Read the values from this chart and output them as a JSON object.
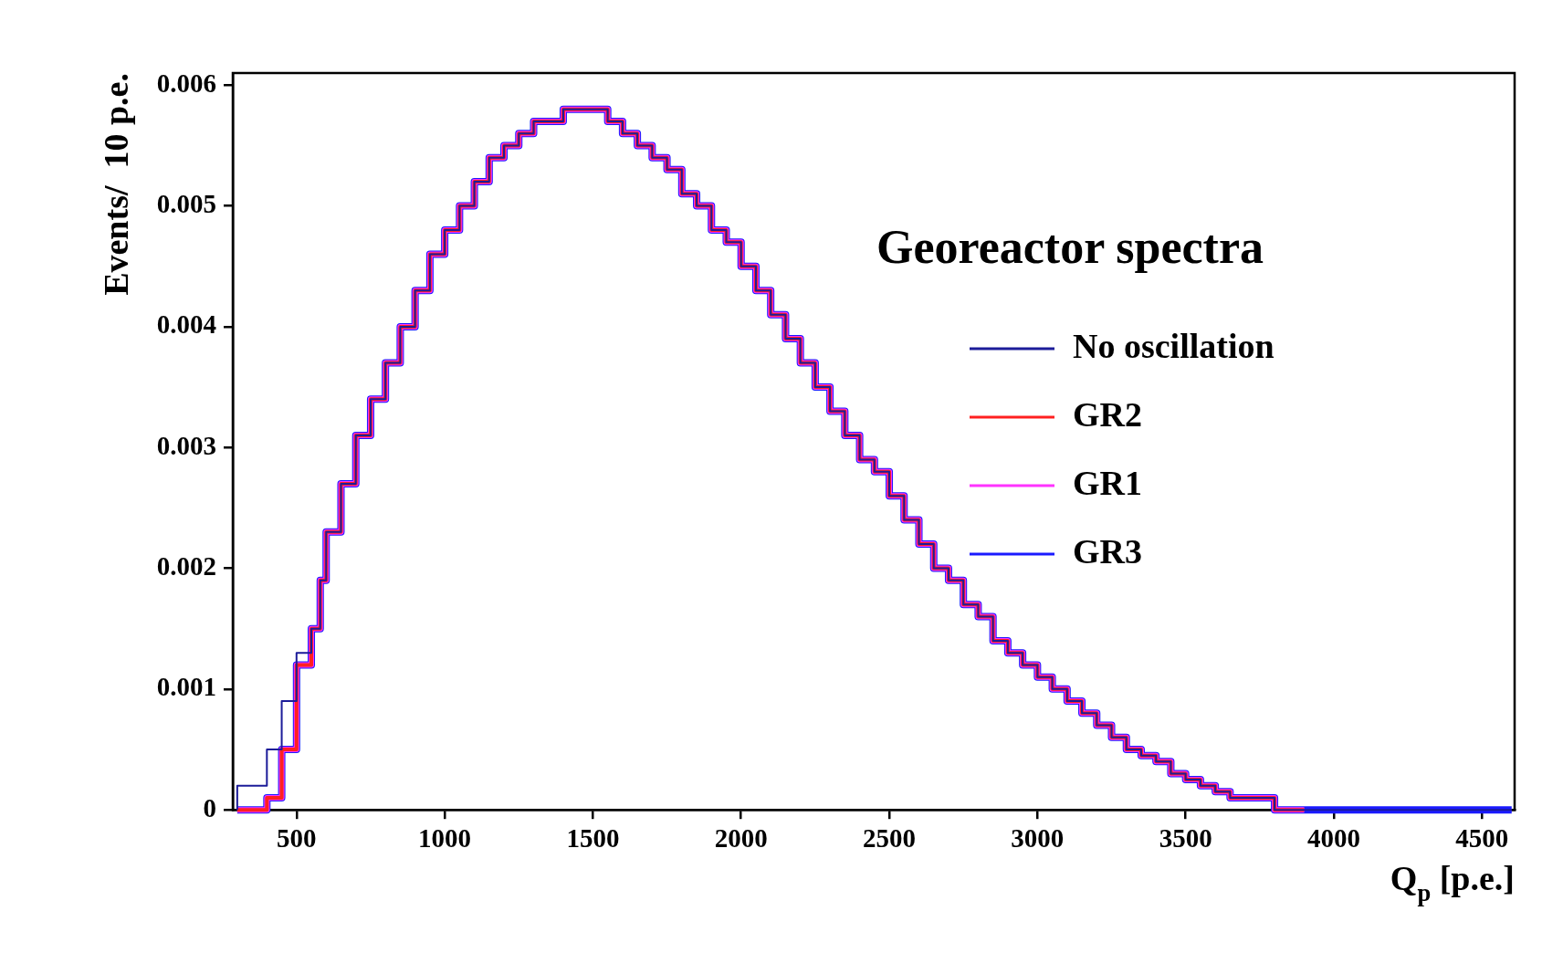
{
  "chart_data": {
    "type": "step",
    "xlabel": "Q$_{p}$ [p.e.]",
    "ylabel": "Events/  10 p.e.",
    "legend_title": "Georeactor spectra",
    "legend": "right",
    "x": [
      300,
      400,
      450,
      500,
      550,
      580,
      600,
      650,
      700,
      750,
      800,
      850,
      900,
      950,
      1000,
      1050,
      1100,
      1150,
      1200,
      1250,
      1300,
      1350,
      1400,
      1450,
      1500,
      1550,
      1600,
      1650,
      1700,
      1750,
      1800,
      1850,
      1900,
      1950,
      2000,
      2050,
      2100,
      2150,
      2200,
      2250,
      2300,
      2350,
      2400,
      2450,
      2500,
      2550,
      2600,
      2650,
      2700,
      2750,
      2800,
      2850,
      2900,
      2950,
      3000,
      3050,
      3100,
      3150,
      3200,
      3250,
      3300,
      3350,
      3400,
      3450,
      3500,
      3550,
      3600,
      3650,
      3700,
      3750,
      3800,
      3900,
      4000,
      4200,
      4600
    ],
    "series": [
      {
        "name": "No oscillation",
        "color": "#1c1c99",
        "values": [
          0,
          0.0002,
          0.0005,
          0.0009,
          0.0013,
          0.0015,
          0.0019,
          0.0023,
          0.0027,
          0.0031,
          0.0034,
          0.0037,
          0.004,
          0.0043,
          0.0046,
          0.0048,
          0.005,
          0.0052,
          0.0054,
          0.0055,
          0.0056,
          0.0057,
          0.0057,
          0.0058,
          0.0058,
          0.0058,
          0.0057,
          0.0056,
          0.0055,
          0.0054,
          0.0053,
          0.0051,
          0.005,
          0.0048,
          0.0047,
          0.0045,
          0.0043,
          0.0041,
          0.0039,
          0.0037,
          0.0035,
          0.0033,
          0.0031,
          0.0029,
          0.0028,
          0.0026,
          0.0024,
          0.0022,
          0.002,
          0.0019,
          0.0017,
          0.0016,
          0.0014,
          0.0013,
          0.0012,
          0.0011,
          0.001,
          0.0009,
          0.0008,
          0.0007,
          0.0006,
          0.0005,
          0.00045,
          0.0004,
          0.0003,
          0.00025,
          0.0002,
          0.00015,
          0.0001,
          0.0001,
          0.0001,
          0,
          0,
          0,
          0
        ]
      },
      {
        "name": "GR2",
        "color": "#ff2020",
        "values": [
          0,
          0,
          0.0001,
          0.0005,
          0.0012,
          0.0015,
          0.0019,
          0.0023,
          0.0027,
          0.0031,
          0.0034,
          0.0037,
          0.004,
          0.0043,
          0.0046,
          0.0048,
          0.005,
          0.0052,
          0.0054,
          0.0055,
          0.0056,
          0.0057,
          0.0057,
          0.0058,
          0.0058,
          0.0058,
          0.0057,
          0.0056,
          0.0055,
          0.0054,
          0.0053,
          0.0051,
          0.005,
          0.0048,
          0.0047,
          0.0045,
          0.0043,
          0.0041,
          0.0039,
          0.0037,
          0.0035,
          0.0033,
          0.0031,
          0.0029,
          0.0028,
          0.0026,
          0.0024,
          0.0022,
          0.002,
          0.0019,
          0.0017,
          0.0016,
          0.0014,
          0.0013,
          0.0012,
          0.0011,
          0.001,
          0.0009,
          0.0008,
          0.0007,
          0.0006,
          0.0005,
          0.00045,
          0.0004,
          0.0003,
          0.00025,
          0.0002,
          0.00015,
          0.0001,
          0.0001,
          0.0001,
          0,
          null,
          null,
          null
        ]
      },
      {
        "name": "GR1",
        "color": "#ff33ff",
        "values": [
          0,
          0,
          0.0001,
          0.0005,
          0.0012,
          0.0015,
          0.0019,
          0.0023,
          0.0027,
          0.0031,
          0.0034,
          0.0037,
          0.004,
          0.0043,
          0.0046,
          0.0048,
          0.005,
          0.0052,
          0.0054,
          0.0055,
          0.0056,
          0.0057,
          0.0057,
          0.0058,
          0.0058,
          0.0058,
          0.0057,
          0.0056,
          0.0055,
          0.0054,
          0.0053,
          0.0051,
          0.005,
          0.0048,
          0.0047,
          0.0045,
          0.0043,
          0.0041,
          0.0039,
          0.0037,
          0.0035,
          0.0033,
          0.0031,
          0.0029,
          0.0028,
          0.0026,
          0.0024,
          0.0022,
          0.002,
          0.0019,
          0.0017,
          0.0016,
          0.0014,
          0.0013,
          0.0012,
          0.0011,
          0.001,
          0.0009,
          0.0008,
          0.0007,
          0.0006,
          0.0005,
          0.00045,
          0.0004,
          0.0003,
          0.00025,
          0.0002,
          0.00015,
          0.0001,
          0.0001,
          0.0001,
          0,
          null,
          null,
          null
        ]
      },
      {
        "name": "GR3",
        "color": "#1a1aff",
        "values": [
          0,
          0,
          0.0001,
          0.0005,
          0.0012,
          0.0015,
          0.0019,
          0.0023,
          0.0027,
          0.0031,
          0.0034,
          0.0037,
          0.004,
          0.0043,
          0.0046,
          0.0048,
          0.005,
          0.0052,
          0.0054,
          0.0055,
          0.0056,
          0.0057,
          0.0057,
          0.0058,
          0.0058,
          0.0058,
          0.0057,
          0.0056,
          0.0055,
          0.0054,
          0.0053,
          0.0051,
          0.005,
          0.0048,
          0.0047,
          0.0045,
          0.0043,
          0.0041,
          0.0039,
          0.0037,
          0.0035,
          0.0033,
          0.0031,
          0.0029,
          0.0028,
          0.0026,
          0.0024,
          0.0022,
          0.002,
          0.0019,
          0.0017,
          0.0016,
          0.0014,
          0.0013,
          0.0012,
          0.0011,
          0.001,
          0.0009,
          0.0008,
          0.0007,
          0.0006,
          0.0005,
          0.00045,
          0.0004,
          0.0003,
          0.00025,
          0.0002,
          0.00015,
          0.0001,
          0.0001,
          0.0001,
          0,
          0,
          0,
          0
        ]
      }
    ],
    "xlim": [
      285,
      4610
    ],
    "xticks": [
      500,
      1000,
      1500,
      2000,
      2500,
      3000,
      3500,
      4000,
      4500
    ],
    "ylim": [
      0,
      0.0061
    ],
    "yticks": [
      0,
      0.001,
      0.002,
      0.003,
      0.004,
      0.005,
      0.006
    ],
    "grid": false
  }
}
